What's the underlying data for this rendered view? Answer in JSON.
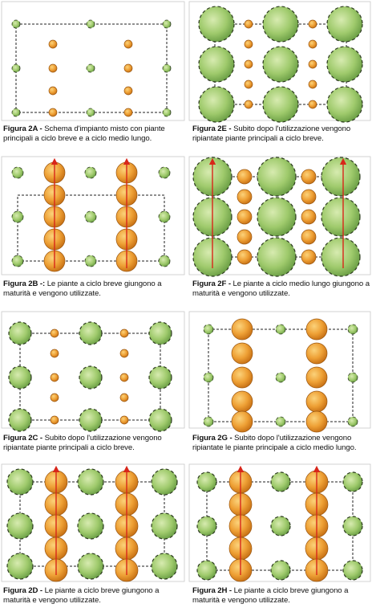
{
  "figures": [
    {
      "label": "Figura 2A -",
      "caption": "Schema d'impianto misto con piante principali a ciclo breve e a ciclo medio lungo."
    },
    {
      "label": "Figura 2E -",
      "caption": "Subito dopo l'utilizzazione vengono ripiantate piante principali a ciclo breve."
    },
    {
      "label": "Figura 2B -:",
      "caption": "Le piante a ciclo breve giungono a maturità e vengono utilizzate."
    },
    {
      "label": "Figura 2F -",
      "caption": "Le piante a ciclo medio lungo giungono a maturità e vengono utilizzate."
    },
    {
      "label": "Figura 2C -",
      "caption": "Subito dopo l'utilizzazione vengono ripiantate piante principali a ciclo breve."
    },
    {
      "label": "Figura 2G -",
      "caption": "Subito dopo l'utilizzazione vengono ripiantate le piante principale a ciclo medio lungo."
    },
    {
      "label": "Figura 2D -",
      "caption": "Le piante a ciclo breve giungono a maturità e vengono utilizzate."
    },
    {
      "label": "Figura 2H -",
      "caption": "Le piante a ciclo breve giungono a maturità e vengono utilizzate."
    }
  ]
}
